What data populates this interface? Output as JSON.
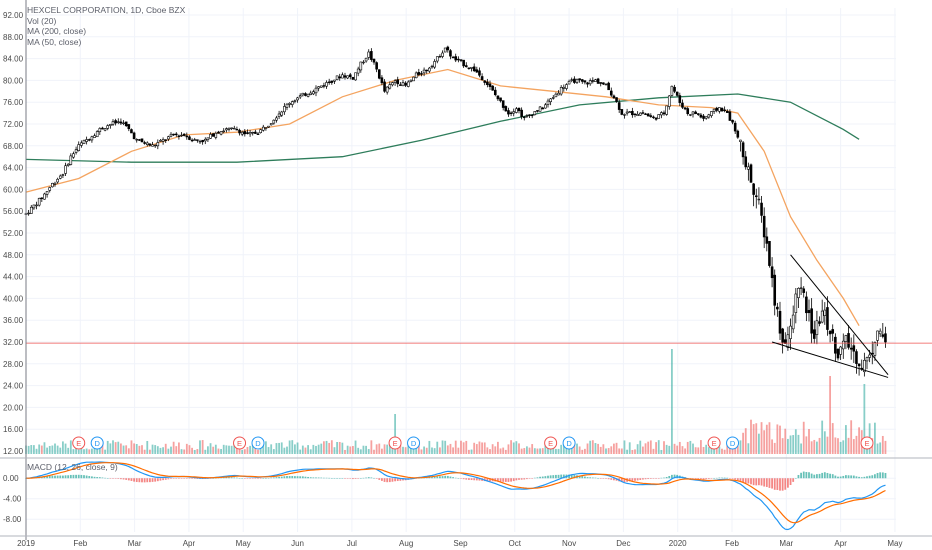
{
  "legend": {
    "symbol_line": "HEXCEL CORPORATION, 1D, Cboe BZX",
    "vol": "Vol (20)",
    "ma200": "MA (200, close)",
    "ma50": "MA (50, close)"
  },
  "macd_legend": "MACD (12, 26, close, 9)",
  "colors": {
    "up": "#26a69a",
    "down": "#ef5350",
    "candle_up_body": "#ffffff",
    "candle_border": "#000000",
    "ma200": "#2e7d5b",
    "ma50": "#f4a460",
    "macd_line": "#2196f3",
    "signal_line": "#ff6d00",
    "hline": "#ef5350",
    "grid": "#f0f3fa"
  },
  "chart_data": {
    "type": "candlestick",
    "price_axis": {
      "ticks": [
        "92.00",
        "88.00",
        "84.00",
        "80.00",
        "76.00",
        "72.00",
        "68.00",
        "64.00",
        "60.00",
        "56.00",
        "52.00",
        "48.00",
        "44.00",
        "40.00",
        "36.00",
        "32.00",
        "28.00",
        "24.00",
        "20.00",
        "16.00",
        "12.00"
      ],
      "ylim": [
        12,
        92
      ]
    },
    "macd_axis": {
      "ticks": [
        "0.00",
        "-4.00",
        "-8.00"
      ],
      "ylim": [
        -10.5,
        2
      ]
    },
    "time_axis": [
      "2019",
      "Feb",
      "Mar",
      "Apr",
      "May",
      "Jun",
      "Jul",
      "Aug",
      "Sep",
      "Oct",
      "Nov",
      "Dec",
      "2020",
      "Feb",
      "Mar",
      "Apr",
      "May"
    ],
    "price_path": [
      [
        0,
        55.5
      ],
      [
        3,
        57
      ],
      [
        6,
        58.5
      ],
      [
        10,
        61
      ],
      [
        14,
        63
      ],
      [
        17,
        66
      ],
      [
        20,
        68
      ],
      [
        24,
        69.5
      ],
      [
        28,
        71
      ],
      [
        32,
        72
      ],
      [
        36,
        72.5
      ],
      [
        39,
        71
      ],
      [
        42,
        69
      ],
      [
        45,
        68.5
      ],
      [
        48,
        68
      ],
      [
        52,
        69
      ],
      [
        56,
        70
      ],
      [
        60,
        70
      ],
      [
        64,
        69
      ],
      [
        68,
        69
      ],
      [
        72,
        70.5
      ],
      [
        76,
        71
      ],
      [
        80,
        71
      ],
      [
        84,
        70
      ],
      [
        88,
        70.5
      ],
      [
        92,
        72
      ],
      [
        96,
        74
      ],
      [
        100,
        76
      ],
      [
        104,
        77
      ],
      [
        108,
        78
      ],
      [
        112,
        79
      ],
      [
        116,
        80
      ],
      [
        120,
        81
      ],
      [
        124,
        80.5
      ],
      [
        127,
        83
      ],
      [
        130,
        85
      ],
      [
        133,
        82
      ],
      [
        136,
        78
      ],
      [
        140,
        80
      ],
      [
        144,
        79
      ],
      [
        148,
        81
      ],
      [
        152,
        82
      ],
      [
        156,
        84
      ],
      [
        159,
        86
      ],
      [
        162,
        84
      ],
      [
        166,
        83
      ],
      [
        170,
        82
      ],
      [
        174,
        80
      ],
      [
        177,
        78
      ],
      [
        180,
        76
      ],
      [
        183,
        74
      ],
      [
        186,
        75
      ],
      [
        189,
        73
      ],
      [
        192,
        74
      ],
      [
        196,
        75
      ],
      [
        200,
        77
      ],
      [
        204,
        79
      ],
      [
        208,
        80
      ],
      [
        212,
        79.5
      ],
      [
        216,
        80
      ],
      [
        220,
        79
      ],
      [
        223,
        77
      ],
      [
        226,
        74
      ],
      [
        230,
        74
      ],
      [
        234,
        74
      ],
      [
        238,
        73
      ],
      [
        242,
        74
      ],
      [
        245,
        79
      ],
      [
        248,
        76
      ],
      [
        251,
        74
      ],
      [
        254,
        74
      ],
      [
        257,
        73
      ],
      [
        260,
        74
      ],
      [
        263,
        75
      ],
      [
        266,
        74
      ],
      [
        269,
        71
      ],
      [
        272,
        66
      ],
      [
        275,
        62
      ],
      [
        278,
        57
      ],
      [
        281,
        50
      ],
      [
        284,
        40
      ],
      [
        287,
        32
      ],
      [
        290,
        34
      ],
      [
        293,
        43
      ],
      [
        296,
        38
      ],
      [
        299,
        33
      ],
      [
        302,
        38
      ],
      [
        305,
        34
      ],
      [
        308,
        30
      ],
      [
        311,
        32
      ],
      [
        314,
        30
      ],
      [
        317,
        28
      ],
      [
        320,
        29
      ],
      [
        323,
        35
      ],
      [
        326,
        32
      ]
    ],
    "ma50_points": [
      [
        0,
        59.5
      ],
      [
        20,
        62
      ],
      [
        40,
        67
      ],
      [
        60,
        70
      ],
      [
        80,
        70.5
      ],
      [
        100,
        72
      ],
      [
        120,
        77
      ],
      [
        140,
        80
      ],
      [
        160,
        82
      ],
      [
        180,
        79
      ],
      [
        200,
        78
      ],
      [
        220,
        77
      ],
      [
        240,
        75.5
      ],
      [
        260,
        75
      ],
      [
        270,
        74
      ],
      [
        280,
        67
      ],
      [
        290,
        55
      ],
      [
        300,
        47
      ],
      [
        310,
        40
      ],
      [
        316,
        35
      ]
    ],
    "ma200_points": [
      [
        0,
        65.5
      ],
      [
        40,
        65
      ],
      [
        80,
        65
      ],
      [
        120,
        66
      ],
      [
        150,
        69
      ],
      [
        180,
        72.5
      ],
      [
        210,
        75.5
      ],
      [
        240,
        76.8
      ],
      [
        270,
        77.5
      ],
      [
        290,
        76
      ],
      [
        310,
        71
      ],
      [
        316,
        69.2
      ]
    ],
    "horizontal_line_price": 31.8,
    "wedge_lines": [
      [
        [
          290,
          48
        ],
        [
          327,
          26
        ]
      ],
      [
        [
          283,
          32
        ],
        [
          327,
          25.5
        ]
      ]
    ],
    "volume_bars_height_scale": [
      0,
      20
    ],
    "volume_bars_note": "volume histogram at bottom of price pane",
    "earnings_markers": [
      {
        "label": "E",
        "type": "earnings",
        "t": 20
      },
      {
        "label": "D",
        "type": "dividend",
        "t": 27
      },
      {
        "label": "E",
        "type": "earnings",
        "t": 81
      },
      {
        "label": "D",
        "type": "dividend",
        "t": 88
      },
      {
        "label": "E",
        "type": "earnings",
        "t": 140
      },
      {
        "label": "D",
        "type": "dividend",
        "t": 147
      },
      {
        "label": "E",
        "type": "earnings",
        "t": 199
      },
      {
        "label": "D",
        "type": "dividend",
        "t": 206
      },
      {
        "label": "E",
        "type": "earnings",
        "t": 261
      },
      {
        "label": "D",
        "type": "dividend",
        "t": 268
      },
      {
        "label": "E",
        "type": "earnings",
        "t": 319
      }
    ]
  }
}
